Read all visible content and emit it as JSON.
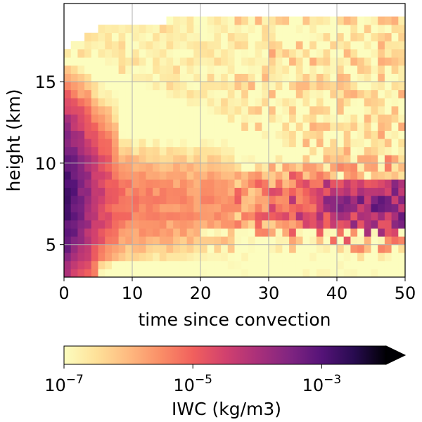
{
  "chart_data": {
    "type": "heatmap",
    "title": "",
    "xlabel": "time since convection",
    "ylabel": "height (km)",
    "xlim": [
      0,
      50
    ],
    "ylim": [
      3,
      19.8
    ],
    "x_ticks": [
      0,
      10,
      20,
      30,
      40,
      50
    ],
    "y_ticks": [
      5,
      10,
      15
    ],
    "x_tick_labels": [
      "0",
      "10",
      "20",
      "30",
      "40",
      "50"
    ],
    "y_tick_labels": [
      "5",
      "10",
      "15"
    ],
    "grid": true,
    "colormap": "magma_r",
    "colorbar": {
      "label": "IWC (kg/m3)",
      "scale": "log",
      "range": [
        1e-07,
        0.01
      ],
      "extend": "max",
      "orientation": "horizontal",
      "ticks": [
        {
          "base": "10",
          "exp": "−7",
          "value": 1e-07
        },
        {
          "base": "10",
          "exp": "−5",
          "value": 1e-05
        },
        {
          "base": "10",
          "exp": "−3",
          "value": 0.001
        }
      ]
    },
    "cell_width": 1,
    "cell_height": 0.5,
    "cloud_top_km": [
      {
        "t": 0,
        "top": 16.8
      },
      {
        "t": 1,
        "top": 17.2
      },
      {
        "t": 2,
        "top": 17.6
      },
      {
        "t": 3,
        "top": 17.8
      },
      {
        "t": 4,
        "top": 17.9
      },
      {
        "t": 5,
        "top": 18.2
      },
      {
        "t": 7,
        "top": 18.5
      },
      {
        "t": 14,
        "top": 18.3
      },
      {
        "t": 15,
        "top": 18.8
      },
      {
        "t": 31,
        "top": 18.8
      },
      {
        "t": 31.5,
        "top": 19.0
      },
      {
        "t": 48,
        "top": 19.0
      },
      {
        "t": 48.5,
        "top": 18.8
      },
      {
        "t": 50,
        "top": 18.8
      }
    ],
    "upper_iwc_limit_km": [
      {
        "t": 0,
        "top": 16.5
      },
      {
        "t": 5,
        "top": 16.5
      },
      {
        "t": 10,
        "top": 15.0
      },
      {
        "t": 20,
        "top": 13.5
      },
      {
        "t": 30,
        "top": 11.5
      },
      {
        "t": 40,
        "top": 10.3
      },
      {
        "t": 50,
        "top": 10.3
      }
    ],
    "iwc_core_log10": [
      {
        "t": 0,
        "log10_iwc": -2.8
      },
      {
        "t": 1,
        "log10_iwc": -3.0
      },
      {
        "t": 3,
        "log10_iwc": -3.6
      },
      {
        "t": 5,
        "log10_iwc": -4.4
      },
      {
        "t": 8,
        "log10_iwc": -5.2
      },
      {
        "t": 15,
        "log10_iwc": -5.5
      },
      {
        "t": 25,
        "log10_iwc": -5.6
      },
      {
        "t": 35,
        "log10_iwc": -4.6
      },
      {
        "t": 45,
        "log10_iwc": -3.8
      },
      {
        "t": 50,
        "log10_iwc": -3.7
      }
    ]
  }
}
